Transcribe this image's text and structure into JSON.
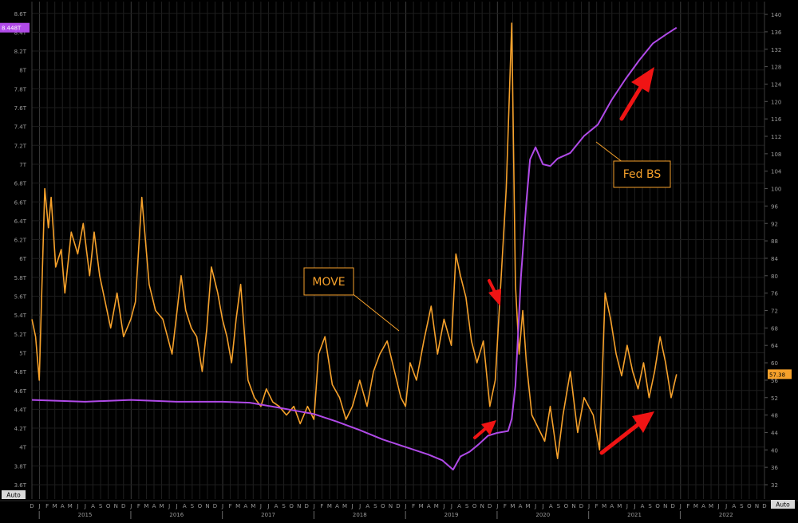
{
  "chart_data": {
    "type": "line",
    "title": "",
    "xlabel": "",
    "ylabel": "",
    "x_years": [
      "2015",
      "2016",
      "2017",
      "2018",
      "2019",
      "2020",
      "2021",
      "2022"
    ],
    "x_month_letters": [
      "D",
      "J",
      "F",
      "M",
      "A",
      "M",
      "J",
      "J",
      "A",
      "S",
      "O",
      "N",
      "D",
      "J",
      "F",
      "M",
      "A",
      "M",
      "J",
      "J",
      "A",
      "S",
      "O",
      "N",
      "D",
      "J",
      "F",
      "M",
      "A",
      "M",
      "J",
      "J",
      "A",
      "S",
      "O",
      "N",
      "D",
      "J",
      "F",
      "M",
      "A",
      "M",
      "J",
      "J",
      "A",
      "S",
      "O",
      "N",
      "D",
      "J",
      "F",
      "M",
      "A",
      "M",
      "J",
      "J",
      "A",
      "S",
      "O",
      "N",
      "D",
      "J",
      "F",
      "M",
      "A",
      "M",
      "J",
      "J",
      "A",
      "S",
      "O",
      "N",
      "D",
      "J",
      "F",
      "M",
      "A",
      "M",
      "J",
      "J",
      "A",
      "S",
      "O",
      "N",
      "D",
      "J",
      "F",
      "M",
      "A",
      "M",
      "J",
      "J",
      "A",
      "S",
      "O",
      "N",
      "D"
    ],
    "xlim": [
      2014.92,
      2022.92
    ],
    "left_axis": {
      "ticks": [
        "3.6T",
        "3.8T",
        "4T",
        "4.2T",
        "4.4T",
        "4.6T",
        "4.8T",
        "5T",
        "5.2T",
        "5.4T",
        "5.6T",
        "5.8T",
        "6T",
        "6.2T",
        "6.4T",
        "6.6T",
        "6.8T",
        "7T",
        "7.2T",
        "7.4T",
        "7.6T",
        "7.8T",
        "8T",
        "8.2T",
        "8.4T",
        "8.6T"
      ],
      "ylim": [
        3.6,
        8.6
      ],
      "last_value_label": "8.448T"
    },
    "right_axis": {
      "ticks": [
        "32",
        "36",
        "40",
        "44",
        "48",
        "52",
        "56",
        "60",
        "64",
        "68",
        "72",
        "76",
        "80",
        "84",
        "88",
        "92",
        "96",
        "100",
        "104",
        "108",
        "112",
        "116",
        "120",
        "124",
        "128",
        "132",
        "136",
        "140"
      ],
      "ylim": [
        32,
        140
      ],
      "last_value_label": "57.38"
    },
    "corner_labels": {
      "left": "Auto",
      "right": "Auto"
    },
    "series": [
      {
        "name": "MOVE",
        "axis": "right",
        "color": "#f6a12b",
        "points": [
          [
            2014.92,
            70
          ],
          [
            2014.96,
            66
          ],
          [
            2015.0,
            56
          ],
          [
            2015.03,
            78
          ],
          [
            2015.06,
            100
          ],
          [
            2015.1,
            91
          ],
          [
            2015.13,
            98
          ],
          [
            2015.18,
            82
          ],
          [
            2015.24,
            86
          ],
          [
            2015.28,
            76
          ],
          [
            2015.35,
            90
          ],
          [
            2015.42,
            85
          ],
          [
            2015.48,
            92
          ],
          [
            2015.55,
            80
          ],
          [
            2015.6,
            90
          ],
          [
            2015.66,
            80
          ],
          [
            2015.72,
            74
          ],
          [
            2015.78,
            68
          ],
          [
            2015.85,
            76
          ],
          [
            2015.92,
            66
          ],
          [
            2016.0,
            70
          ],
          [
            2016.05,
            74
          ],
          [
            2016.12,
            98
          ],
          [
            2016.2,
            78
          ],
          [
            2016.27,
            72
          ],
          [
            2016.35,
            70
          ],
          [
            2016.45,
            62
          ],
          [
            2016.55,
            80
          ],
          [
            2016.6,
            72
          ],
          [
            2016.66,
            68
          ],
          [
            2016.72,
            66
          ],
          [
            2016.78,
            58
          ],
          [
            2016.83,
            68
          ],
          [
            2016.88,
            82
          ],
          [
            2016.95,
            76
          ],
          [
            2017.0,
            70
          ],
          [
            2017.05,
            66
          ],
          [
            2017.1,
            60
          ],
          [
            2017.15,
            70
          ],
          [
            2017.2,
            78
          ],
          [
            2017.28,
            56
          ],
          [
            2017.35,
            52
          ],
          [
            2017.42,
            50
          ],
          [
            2017.48,
            54
          ],
          [
            2017.55,
            51
          ],
          [
            2017.62,
            50
          ],
          [
            2017.7,
            48
          ],
          [
            2017.78,
            50
          ],
          [
            2017.85,
            46
          ],
          [
            2017.93,
            50
          ],
          [
            2018.0,
            47
          ],
          [
            2018.05,
            62
          ],
          [
            2018.12,
            66
          ],
          [
            2018.2,
            55
          ],
          [
            2018.28,
            52
          ],
          [
            2018.35,
            47
          ],
          [
            2018.42,
            50
          ],
          [
            2018.5,
            56
          ],
          [
            2018.58,
            50
          ],
          [
            2018.65,
            58
          ],
          [
            2018.72,
            62
          ],
          [
            2018.8,
            65
          ],
          [
            2018.88,
            58
          ],
          [
            2018.95,
            52
          ],
          [
            2019.0,
            50
          ],
          [
            2019.05,
            60
          ],
          [
            2019.12,
            56
          ],
          [
            2019.2,
            65
          ],
          [
            2019.28,
            73
          ],
          [
            2019.35,
            62
          ],
          [
            2019.42,
            70
          ],
          [
            2019.5,
            64
          ],
          [
            2019.55,
            85
          ],
          [
            2019.6,
            80
          ],
          [
            2019.66,
            75
          ],
          [
            2019.72,
            65
          ],
          [
            2019.78,
            60
          ],
          [
            2019.85,
            65
          ],
          [
            2019.92,
            50
          ],
          [
            2019.98,
            56
          ],
          [
            2020.04,
            78
          ],
          [
            2020.1,
            100
          ],
          [
            2020.16,
            138
          ],
          [
            2020.2,
            78
          ],
          [
            2020.24,
            62
          ],
          [
            2020.28,
            72
          ],
          [
            2020.32,
            60
          ],
          [
            2020.38,
            48
          ],
          [
            2020.45,
            45
          ],
          [
            2020.52,
            42
          ],
          [
            2020.58,
            50
          ],
          [
            2020.66,
            38
          ],
          [
            2020.72,
            48
          ],
          [
            2020.8,
            58
          ],
          [
            2020.88,
            44
          ],
          [
            2020.95,
            52
          ],
          [
            2021.05,
            48
          ],
          [
            2021.12,
            40
          ],
          [
            2021.18,
            76
          ],
          [
            2021.24,
            70
          ],
          [
            2021.3,
            62
          ],
          [
            2021.36,
            57
          ],
          [
            2021.42,
            64
          ],
          [
            2021.48,
            58
          ],
          [
            2021.54,
            54
          ],
          [
            2021.6,
            60
          ],
          [
            2021.66,
            52
          ],
          [
            2021.72,
            58
          ],
          [
            2021.78,
            66
          ],
          [
            2021.84,
            60
          ],
          [
            2021.9,
            52
          ],
          [
            2021.96,
            57.38
          ]
        ]
      },
      {
        "name": "Fed BS",
        "axis": "left",
        "color": "#b04ae8",
        "points": [
          [
            2014.92,
            4.5
          ],
          [
            2015.5,
            4.48
          ],
          [
            2016.0,
            4.5
          ],
          [
            2016.5,
            4.48
          ],
          [
            2017.0,
            4.48
          ],
          [
            2017.3,
            4.47
          ],
          [
            2017.6,
            4.42
          ],
          [
            2017.83,
            4.38
          ],
          [
            2018.0,
            4.35
          ],
          [
            2018.25,
            4.27
          ],
          [
            2018.5,
            4.18
          ],
          [
            2018.75,
            4.08
          ],
          [
            2019.0,
            4.0
          ],
          [
            2019.25,
            3.92
          ],
          [
            2019.4,
            3.86
          ],
          [
            2019.52,
            3.76
          ],
          [
            2019.6,
            3.9
          ],
          [
            2019.7,
            3.95
          ],
          [
            2019.8,
            4.03
          ],
          [
            2019.9,
            4.12
          ],
          [
            2020.0,
            4.15
          ],
          [
            2020.12,
            4.17
          ],
          [
            2020.16,
            4.3
          ],
          [
            2020.2,
            4.65
          ],
          [
            2020.26,
            5.8
          ],
          [
            2020.32,
            6.6
          ],
          [
            2020.36,
            7.05
          ],
          [
            2020.42,
            7.18
          ],
          [
            2020.5,
            7.0
          ],
          [
            2020.58,
            6.98
          ],
          [
            2020.66,
            7.06
          ],
          [
            2020.8,
            7.12
          ],
          [
            2020.95,
            7.3
          ],
          [
            2021.1,
            7.42
          ],
          [
            2021.25,
            7.68
          ],
          [
            2021.4,
            7.9
          ],
          [
            2021.55,
            8.1
          ],
          [
            2021.7,
            8.28
          ],
          [
            2021.85,
            8.38
          ],
          [
            2021.96,
            8.448
          ]
        ]
      }
    ],
    "annotations": [
      {
        "label": "Fed BS"
      },
      {
        "label": "MOVE"
      }
    ],
    "grid": true
  }
}
